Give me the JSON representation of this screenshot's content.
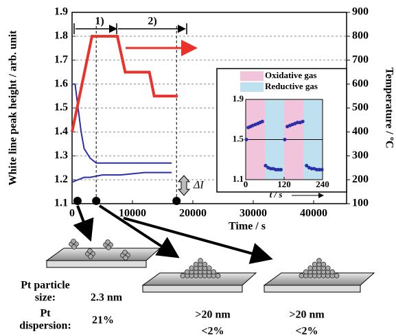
{
  "chart_data": [
    {
      "type": "line",
      "xlabel": "Time / s",
      "ylabel": "White line peak height / arb. unit",
      "y2label": "Temperature / ºC",
      "xlim": [
        0,
        45000
      ],
      "xticks": [
        0,
        10000,
        20000,
        30000,
        40000
      ],
      "ylim": [
        1.1,
        1.9
      ],
      "yticks": [
        1.1,
        1.2,
        1.3,
        1.4,
        1.5,
        1.6,
        1.7,
        1.8,
        1.9
      ],
      "y2lim": [
        100,
        900
      ],
      "y2ticks": [
        100,
        200,
        300,
        400,
        500,
        600,
        700,
        800,
        900
      ],
      "grid": true,
      "series": [
        {
          "color": "#2b2fa8",
          "x": [
            0,
            500,
            1000,
            1500,
            2000,
            3000,
            4000,
            6000,
            10000,
            16500
          ],
          "values": [
            1.6,
            1.6,
            1.5,
            1.4,
            1.33,
            1.29,
            1.27,
            1.27,
            1.27,
            1.27
          ]
        },
        {
          "color": "#2b2fa8",
          "x": [
            0,
            1000,
            2000,
            3000,
            5000,
            8000,
            12000,
            16500
          ],
          "values": [
            1.19,
            1.2,
            1.21,
            1.21,
            1.22,
            1.22,
            1.23,
            1.23
          ]
        },
        {
          "color": "#e8322a",
          "axis": "y2",
          "x": [
            0,
            3300,
            7500,
            8800,
            12800,
            13600,
            17500
          ],
          "values": [
            400,
            800,
            800,
            650,
            650,
            550,
            550
          ]
        }
      ],
      "event_times": [
        900,
        4000,
        17300
      ],
      "annotations": [
        "1)",
        "2)",
        "ΔI"
      ]
    },
    {
      "type": "scatter",
      "xlabel": "t / s",
      "xlim": [
        0,
        240
      ],
      "xticks": [
        0,
        120,
        240
      ],
      "ylim": [
        1.1,
        1.9
      ],
      "yticks": [
        1.1,
        1.5,
        1.9
      ],
      "regions": [
        {
          "name": "Oxidative gas",
          "color": "#f2c4dc",
          "spans": [
            [
              0,
              60
            ],
            [
              120,
              180
            ]
          ]
        },
        {
          "name": "Reductive gas",
          "color": "#bfe0ef",
          "spans": [
            [
              60,
              120
            ],
            [
              180,
              240
            ]
          ]
        }
      ],
      "color": "#2b2fa8",
      "x": [
        2,
        8,
        15,
        22,
        30,
        38,
        45,
        52,
        62,
        70,
        78,
        86,
        94,
        102,
        110,
        122,
        130,
        138,
        146,
        154,
        162,
        170,
        178,
        190,
        198,
        206,
        214,
        222,
        230,
        238
      ],
      "values": [
        1.5,
        1.62,
        1.63,
        1.64,
        1.65,
        1.66,
        1.67,
        1.68,
        1.24,
        1.22,
        1.21,
        1.21,
        1.2,
        1.2,
        1.2,
        1.5,
        1.63,
        1.64,
        1.65,
        1.66,
        1.67,
        1.67,
        1.68,
        1.24,
        1.22,
        1.21,
        1.21,
        1.2,
        1.2,
        1.2
      ]
    }
  ],
  "diagram": {
    "size_label": [
      "Pt particle",
      "size:"
    ],
    "dispersion_label": [
      "Pt",
      "dispersion:"
    ],
    "states": [
      {
        "size": "2.3 nm",
        "dispersion": "21%"
      },
      {
        "size": ">20 nm",
        "dispersion": "<2%"
      },
      {
        "size": ">20 nm",
        "dispersion": "<2%"
      }
    ]
  }
}
